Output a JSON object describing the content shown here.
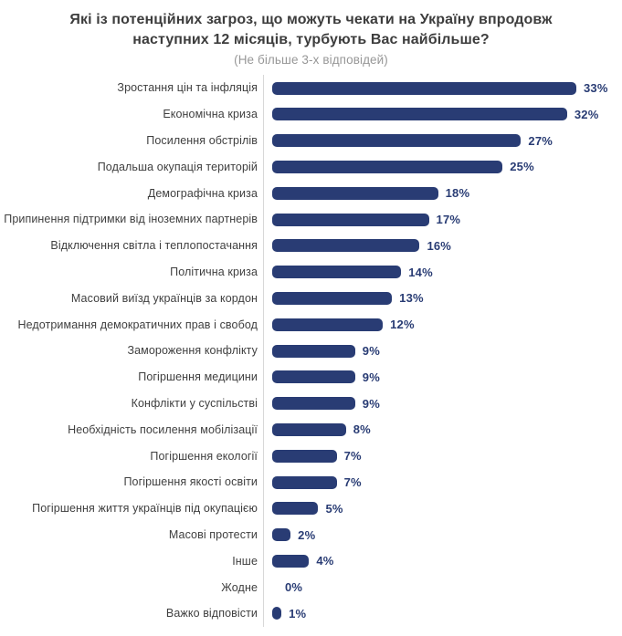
{
  "header": {
    "title": "Які із потенційних загроз, що можуть чекати на Україну впродовж наступних 12 місяців, турбують Вас найбільше?",
    "subtitle": "(Не більше 3-х відповідей)"
  },
  "colors": {
    "bar": "#293c74",
    "value_label": "#293c74",
    "category_label": "#3f3f3f",
    "title": "#3d3d3d",
    "subtitle": "#979797",
    "axis_line": "#d8d8d8"
  },
  "chart_data": {
    "type": "bar",
    "orientation": "horizontal",
    "title": "Які із потенційних загроз, що можуть чекати на Україну впродовж наступних 12 місяців, турбують Вас найбільше?",
    "subtitle": "(Не більше 3-х відповідей)",
    "unit": "%",
    "xlim": [
      0,
      35
    ],
    "grid": false,
    "legend": "none",
    "value_labels_shown": true,
    "categories": [
      "Зростання цін та інфляція",
      "Економічна криза",
      "Посилення обстрілів",
      "Подальша окупація територій",
      "Демографічна криза",
      "Припинення підтримки від іноземних партнерів",
      "Відключення світла і теплопостачання",
      "Політична криза",
      "Масовий виїзд українців за кордон",
      "Недотримання демократичних прав і свобод",
      "Замороження конфлікту",
      "Погіршення медицини",
      "Конфлікти у суспільстві",
      "Необхідність посилення мобілізації",
      "Погіршення екології",
      "Погіршення якості освіти",
      "Погіршення життя українців під окупацією",
      "Масові протести",
      "Інше",
      "Жодне",
      "Важко відповісти"
    ],
    "values": [
      33,
      32,
      27,
      25,
      18,
      17,
      16,
      14,
      13,
      12,
      9,
      9,
      9,
      8,
      7,
      7,
      5,
      2,
      4,
      0,
      1
    ]
  }
}
